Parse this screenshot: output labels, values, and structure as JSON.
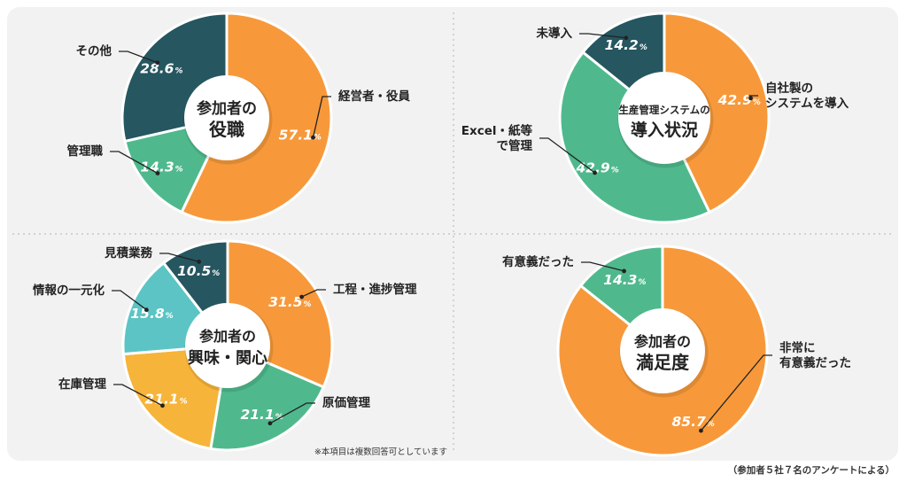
{
  "chart_data": [
    {
      "type": "pie",
      "center_title": [
        "参加者の",
        "役職"
      ],
      "categories": [
        "経営者・役員",
        "管理職",
        "その他"
      ],
      "label_text": [
        [
          "経営者・役員"
        ],
        [
          "管理職"
        ],
        [
          "その他"
        ]
      ],
      "values": [
        57.1,
        14.3,
        28.6
      ],
      "colors": [
        "#f7993a",
        "#4fb98d",
        "#265660"
      ]
    },
    {
      "type": "pie",
      "center_title": [
        "生産管理システムの",
        "導入状況"
      ],
      "categories": [
        "自社製のシステムを導入",
        "Excel・紙等で管理",
        "未導入"
      ],
      "label_text": [
        [
          "自社製の",
          "システムを導入"
        ],
        [
          "Excel・紙等",
          "で管理"
        ],
        [
          "未導入"
        ]
      ],
      "values": [
        42.9,
        42.9,
        14.2
      ],
      "colors": [
        "#f7993a",
        "#4fb98d",
        "#265660"
      ]
    },
    {
      "type": "pie",
      "center_title": [
        "参加者の",
        "興味・関心"
      ],
      "categories": [
        "工程・進捗管理",
        "原価管理",
        "在庫管理",
        "情報の一元化",
        "見積業務"
      ],
      "label_text": [
        [
          "工程・進捗管理"
        ],
        [
          "原価管理"
        ],
        [
          "在庫管理"
        ],
        [
          "情報の一元化"
        ],
        [
          "見積業務"
        ]
      ],
      "values": [
        31.5,
        21.1,
        21.1,
        15.8,
        10.5
      ],
      "colors": [
        "#f7993a",
        "#4fb98d",
        "#f6b43a",
        "#5cc4c4",
        "#265660"
      ]
    },
    {
      "type": "pie",
      "center_title": [
        "参加者の",
        "満足度"
      ],
      "categories": [
        "非常に有意義だった",
        "有意義だった"
      ],
      "label_text": [
        [
          "非常に",
          "有意義だった"
        ],
        [
          "有意義だった"
        ]
      ],
      "values": [
        85.7,
        14.3
      ],
      "colors": [
        "#f7993a",
        "#4fb98d"
      ]
    }
  ],
  "note": "※本項目は複数回答可としています",
  "footnote": "（参加者５社７名のアンケートによる）",
  "percent_suffix": "%"
}
